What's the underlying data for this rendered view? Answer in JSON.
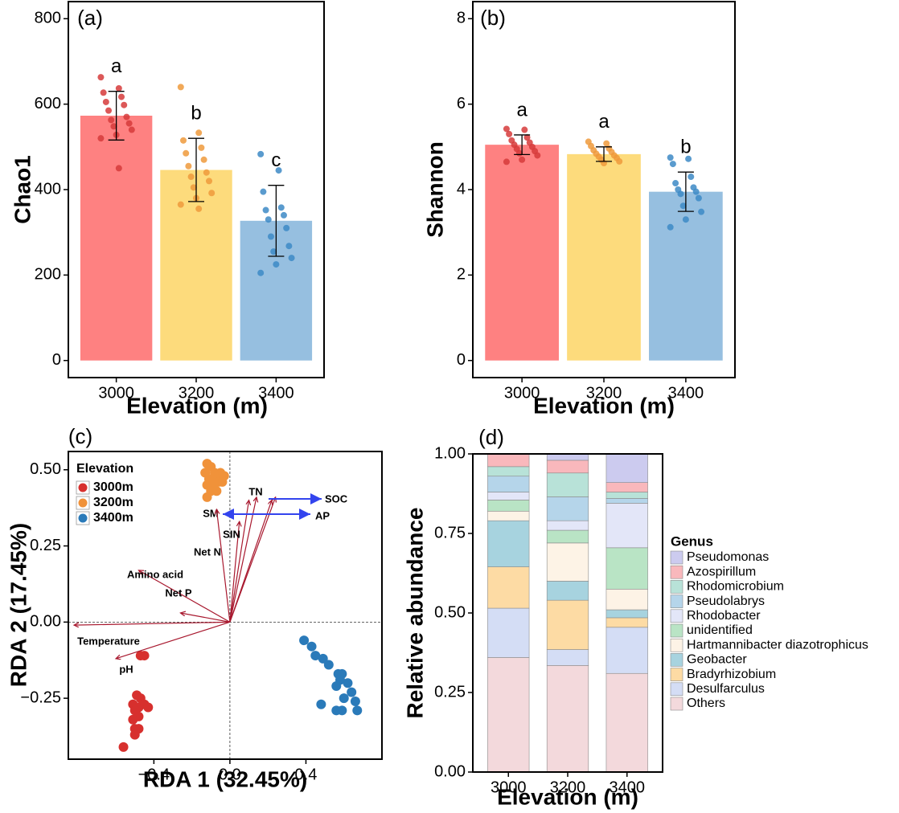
{
  "chart_data": [
    {
      "type": "bar",
      "title": "(a)",
      "x_label": "Elevation (m)",
      "y_label": "Chao1",
      "categories": [
        "3000",
        "3200",
        "3400"
      ],
      "values": [
        573,
        446,
        327
      ],
      "errors": [
        57,
        74,
        83
      ],
      "letters": [
        "a",
        "b",
        "c"
      ],
      "colors": [
        "#fe8181",
        "#fddb7c",
        "#96bfe0"
      ],
      "point_colors": [
        "#d63b3b",
        "#ef9a3c",
        "#3d8ac5"
      ],
      "points": [
        [
          663,
          637,
          627,
          617,
          605,
          598,
          585,
          570,
          563,
          555,
          548,
          540,
          528,
          520,
          450
        ],
        [
          640,
          533,
          515,
          498,
          485,
          470,
          455,
          440,
          430,
          420,
          405,
          392,
          380,
          365,
          355
        ],
        [
          483,
          445,
          395,
          358,
          352,
          340,
          330,
          310,
          290,
          268,
          255,
          240,
          225,
          205
        ]
      ],
      "ylim": [
        -40,
        840
      ],
      "yticks": [
        0,
        200,
        400,
        600,
        800
      ]
    },
    {
      "type": "bar",
      "title": "(b)",
      "x_label": "Elevation (m)",
      "y_label": "Shannon",
      "categories": [
        "3000",
        "3200",
        "3400"
      ],
      "values": [
        5.05,
        4.83,
        3.95
      ],
      "errors": [
        0.23,
        0.17,
        0.46
      ],
      "letters": [
        "a",
        "a",
        "b"
      ],
      "colors": [
        "#fe8181",
        "#fddb7c",
        "#96bfe0"
      ],
      "point_colors": [
        "#d63b3b",
        "#ef9a3c",
        "#3d8ac5"
      ],
      "points": [
        [
          5.42,
          5.4,
          5.3,
          5.22,
          5.15,
          5.1,
          5.05,
          5.0,
          4.95,
          4.9,
          4.85,
          4.8,
          4.7,
          4.65
        ],
        [
          5.12,
          5.08,
          5.02,
          4.96,
          4.92,
          4.88,
          4.84,
          4.8,
          4.77,
          4.74,
          4.7,
          4.66,
          4.62
        ],
        [
          4.75,
          4.72,
          4.6,
          4.3,
          4.15,
          4.05,
          4.0,
          3.95,
          3.9,
          3.8,
          3.62,
          3.48,
          3.3,
          3.12
        ]
      ],
      "ylim": [
        -0.4,
        8.4
      ],
      "yticks": [
        0,
        2,
        4,
        6,
        8
      ]
    },
    {
      "type": "scatter",
      "title": "(c)",
      "x_label": "RDA 1 (32.45%)",
      "y_label": "RDA 2 (17.45%)",
      "legend_title": "Elevation",
      "legend": "top-left",
      "series": [
        {
          "name": "3000m",
          "color": "#d7302e",
          "x": [
            -0.47,
            -0.45,
            -0.49,
            -0.47,
            -0.51,
            -0.45,
            -0.48,
            -0.5,
            -0.48,
            -0.51,
            -0.5,
            -0.48,
            -0.5,
            -0.56,
            -0.43
          ],
          "values": [
            -0.11,
            -0.11,
            -0.24,
            -0.25,
            -0.27,
            -0.27,
            -0.28,
            -0.29,
            -0.31,
            -0.32,
            -0.35,
            -0.35,
            -0.37,
            -0.41,
            -0.28
          ]
        },
        {
          "name": "3200m",
          "color": "#f0923a",
          "x": [
            -0.12,
            -0.1,
            -0.13,
            -0.08,
            -0.05,
            -0.11,
            -0.07,
            -0.03,
            -0.12,
            -0.09,
            -0.06,
            -0.1,
            -0.07,
            -0.12,
            -0.04
          ],
          "values": [
            0.52,
            0.51,
            0.49,
            0.49,
            0.49,
            0.47,
            0.47,
            0.48,
            0.45,
            0.45,
            0.46,
            0.43,
            0.43,
            0.41,
            0.46
          ]
        },
        {
          "name": "3400m",
          "color": "#2a7ab9",
          "x": [
            0.39,
            0.43,
            0.45,
            0.49,
            0.52,
            0.57,
            0.59,
            0.58,
            0.56,
            0.62,
            0.64,
            0.6,
            0.66,
            0.67,
            0.48,
            0.56,
            0.59
          ],
          "values": [
            -0.06,
            -0.08,
            -0.11,
            -0.12,
            -0.14,
            -0.17,
            -0.17,
            -0.19,
            -0.21,
            -0.2,
            -0.23,
            -0.25,
            -0.26,
            -0.29,
            -0.27,
            -0.29,
            -0.29
          ]
        }
      ],
      "arrows": [
        {
          "name": "SOC",
          "x": 0.24,
          "y": 0.41
        },
        {
          "name": "AP",
          "x": 0.22,
          "y": 0.4
        },
        {
          "name": "TN",
          "x": 0.14,
          "y": 0.41
        },
        {
          "name": "SM",
          "x": 0.1,
          "y": 0.4
        },
        {
          "name": "SIN",
          "x": 0.05,
          "y": 0.33
        },
        {
          "name": "Net N",
          "x": -0.07,
          "y": 0.37
        },
        {
          "name": "Amino acid",
          "x": -0.48,
          "y": 0.17
        },
        {
          "name": "Net P",
          "x": -0.26,
          "y": 0.03
        },
        {
          "name": "Temperature",
          "x": -0.82,
          "y": -0.01
        },
        {
          "name": "pH",
          "x": -0.6,
          "y": -0.12
        }
      ],
      "xlim": [
        -0.85,
        0.8
      ],
      "ylim": [
        -0.45,
        0.56
      ],
      "xticks": [
        {
          "value": -0.4,
          "label": "−0.4"
        },
        {
          "value": 0,
          "label": "0.0"
        },
        {
          "value": 0.4,
          "label": "0.4"
        }
      ],
      "yticks": [
        {
          "value": -0.25,
          "label": "−0.25"
        },
        {
          "value": 0,
          "label": "0.00"
        },
        {
          "value": 0.25,
          "label": "0.25"
        },
        {
          "value": 0.5,
          "label": "0.50"
        }
      ]
    },
    {
      "type": "stacked_bar",
      "title": "(d)",
      "x_label": "Elevation (m)",
      "y_label": "Relative abundance",
      "legend_title": "Genus",
      "categories": [
        "3000",
        "3200",
        "3400"
      ],
      "series": [
        {
          "name": "Others",
          "color": "#f3d9dc",
          "values": [
            0.36,
            0.335,
            0.31
          ]
        },
        {
          "name": "Desulfarculus",
          "color": "#d4ddf5",
          "values": [
            0.155,
            0.05,
            0.145
          ]
        },
        {
          "name": "Bradyrhizobium",
          "color": "#fddba4",
          "values": [
            0.13,
            0.155,
            0.03
          ]
        },
        {
          "name": "Geobacter",
          "color": "#a7d3df",
          "values": [
            0.145,
            0.06,
            0.025
          ]
        },
        {
          "name": "Hartmannibacter diazotrophicus",
          "color": "#fdf3e6",
          "values": [
            0.03,
            0.12,
            0.065
          ]
        },
        {
          "name": "unidentified",
          "color": "#b9e4c5",
          "values": [
            0.035,
            0.04,
            0.13
          ]
        },
        {
          "name": "Rhodobacter",
          "color": "#e3e6f8",
          "values": [
            0.025,
            0.03,
            0.14
          ]
        },
        {
          "name": "Pseudolabrys",
          "color": "#b5d5ea",
          "values": [
            0.05,
            0.075,
            0.015
          ]
        },
        {
          "name": "Rhodomicrobium",
          "color": "#b8e2d8",
          "values": [
            0.03,
            0.075,
            0.02
          ]
        },
        {
          "name": "Azospirillum",
          "color": "#f9b8bc",
          "values": [
            0.04,
            0.04,
            0.03
          ]
        },
        {
          "name": "Pseudomonas",
          "color": "#cccbef",
          "values": [
            0,
            0.02,
            0.09
          ]
        }
      ],
      "ylim": [
        0,
        1
      ],
      "yticks": [
        {
          "value": 0,
          "label": "0.00"
        },
        {
          "value": 0.25,
          "label": "0.25"
        },
        {
          "value": 0.5,
          "label": "0.50"
        },
        {
          "value": 0.75,
          "label": "0.75"
        },
        {
          "value": 1,
          "label": "1.00"
        }
      ]
    }
  ]
}
